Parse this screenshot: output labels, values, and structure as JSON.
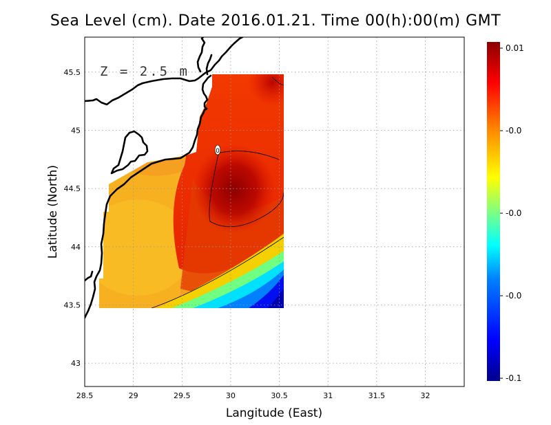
{
  "title": "Sea Level (cm). Date 2016.01.21. Time 00(h):00(m) GMT",
  "depth_label": "Z = 2.5 m",
  "contour_label": "0",
  "x_axis": {
    "title": "Langitude (East)",
    "range": [
      28.5,
      32.4
    ],
    "ticks": [
      {
        "value": 28.5,
        "label": "28.5"
      },
      {
        "value": 29,
        "label": "29"
      },
      {
        "value": 29.5,
        "label": "29.5"
      },
      {
        "value": 30,
        "label": "30"
      },
      {
        "value": 30.5,
        "label": "30.5"
      },
      {
        "value": 31,
        "label": "31"
      },
      {
        "value": 31.5,
        "label": "31.5"
      },
      {
        "value": 32,
        "label": "32"
      }
    ]
  },
  "y_axis": {
    "title": "Latitude (North)",
    "range": [
      42.8,
      45.8
    ],
    "ticks": [
      {
        "value": 43,
        "label": "43"
      },
      {
        "value": 43.5,
        "label": "43.5"
      },
      {
        "value": 44,
        "label": "44"
      },
      {
        "value": 44.5,
        "label": "44.5"
      },
      {
        "value": 45,
        "label": "45"
      },
      {
        "value": 45.5,
        "label": "45.5"
      }
    ]
  },
  "grid": true,
  "colorbar": {
    "placement": "right",
    "colors": [
      "#00008b",
      "#0000ff",
      "#0080ff",
      "#00ffff",
      "#80ff80",
      "#ffff00",
      "#ff8000",
      "#ff0000",
      "#8b0000"
    ],
    "labels": [
      "0.01",
      "-0.0",
      "-0.0",
      "-0.0",
      "-0.1"
    ]
  },
  "colors": {
    "land_outline": "#000000",
    "contour_line": "#000000"
  }
}
